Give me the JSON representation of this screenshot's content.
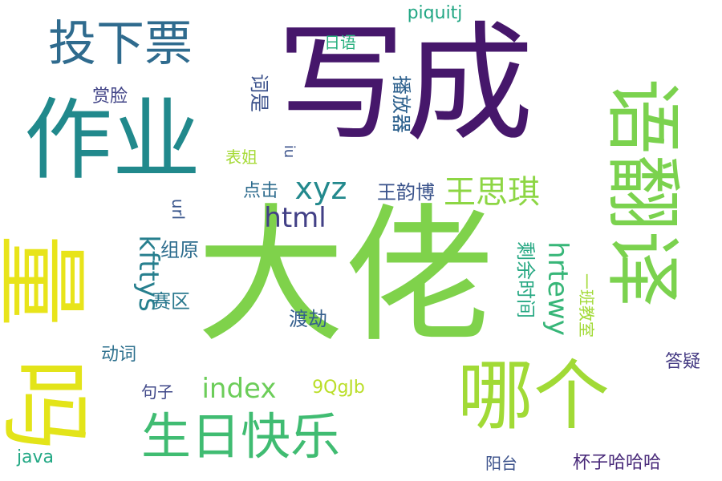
{
  "words": [
    {
      "text": "写成",
      "color": "#46176b"
    },
    {
      "text": "大佬",
      "color": "#7fd24b"
    },
    {
      "text": "作业",
      "color": "#21898c"
    },
    {
      "text": "语翻译",
      "color": "#7bd24e"
    },
    {
      "text": "哪个",
      "color": "#a1da36"
    },
    {
      "text": "量",
      "color": "#e8e41a"
    },
    {
      "text": "生日快乐",
      "color": "#40bc72"
    },
    {
      "text": "投下票",
      "color": "#2f6b8e"
    },
    {
      "text": "吗",
      "color": "#e3e419"
    },
    {
      "text": "王思琪",
      "color": "#8dd644"
    },
    {
      "text": "xyz",
      "color": "#23898d"
    },
    {
      "text": "html",
      "color": "#424086"
    },
    {
      "text": "kfttys",
      "color": "#277f8e"
    },
    {
      "text": "hrtewy",
      "color": "#37b678"
    },
    {
      "text": "index",
      "color": "#6ccd59"
    },
    {
      "text": "播放器",
      "color": "#2b5f8c"
    },
    {
      "text": "词是",
      "color": "#3b518b"
    },
    {
      "text": "剩余时间",
      "color": "#27a883"
    },
    {
      "text": "王韵博",
      "color": "#3a538b"
    },
    {
      "text": "渡劫",
      "color": "#355f8d"
    },
    {
      "text": "赛区",
      "color": "#2a788e"
    },
    {
      "text": "组原",
      "color": "#2e6d8e"
    },
    {
      "text": "点击",
      "color": "#2e6c8e"
    },
    {
      "text": "表姐",
      "color": "#a5da35"
    },
    {
      "text": "赏脸",
      "color": "#414487"
    },
    {
      "text": "日语",
      "color": "#2ab07f"
    },
    {
      "text": "piquitj",
      "color": "#22a784"
    },
    {
      "text": "url",
      "color": "#39568c"
    },
    {
      "text": "iu",
      "color": "#3b528b"
    },
    {
      "text": "一班教室",
      "color": "#a2da37"
    },
    {
      "text": "答疑",
      "color": "#443a83"
    },
    {
      "text": "动词",
      "color": "#2d708e"
    },
    {
      "text": "句子",
      "color": "#3f4788"
    },
    {
      "text": "9QgJb",
      "color": "#bade28"
    },
    {
      "text": "java",
      "color": "#22a884"
    },
    {
      "text": "阳台",
      "color": "#3b518b"
    },
    {
      "text": "杯子哈哈哈",
      "color": "#482979"
    }
  ]
}
